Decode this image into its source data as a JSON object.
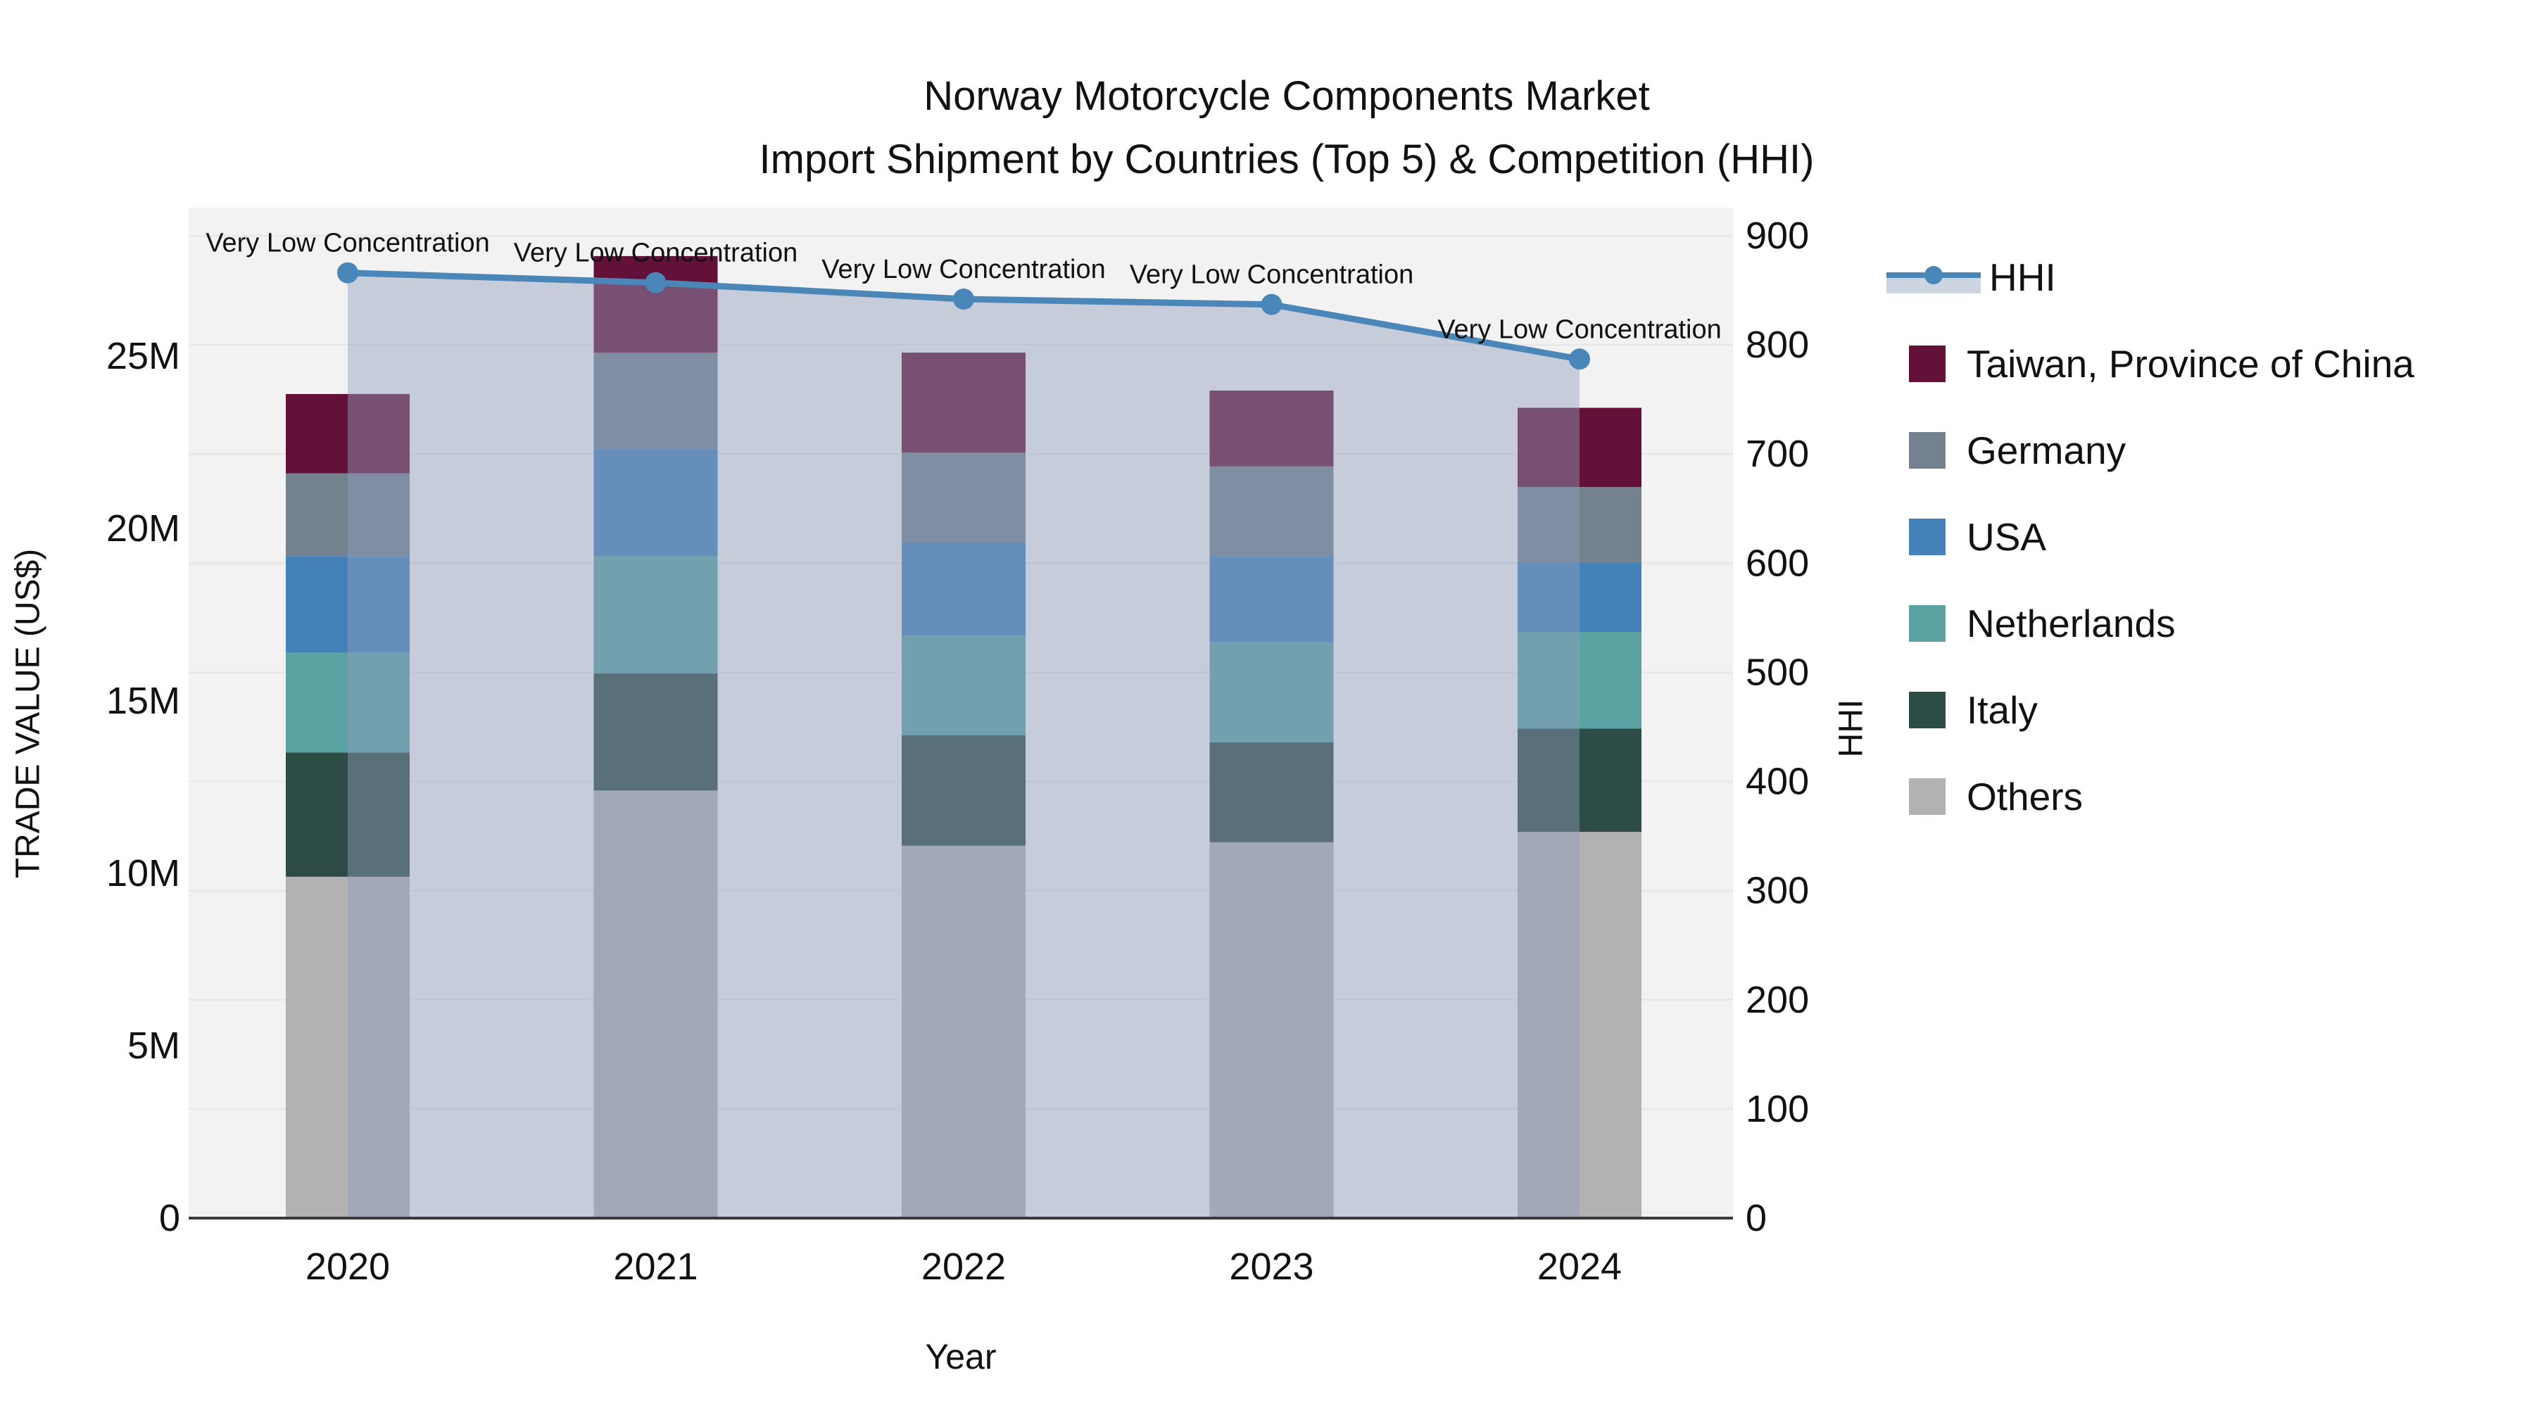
{
  "title": {
    "line1": "Norway Motorcycle Components Market",
    "line2": "Import Shipment by Countries (Top 5) & Competition (HHI)"
  },
  "axes": {
    "x": {
      "label": "Year",
      "categories": [
        "2020",
        "2021",
        "2022",
        "2023",
        "2024"
      ]
    },
    "y_left": {
      "label": "TRADE VALUE (US$)",
      "tick_labels": [
        "0",
        "5M",
        "10M",
        "15M",
        "20M",
        "25M"
      ],
      "tick_values": [
        0,
        5,
        10,
        15,
        20,
        25
      ],
      "range": [
        0,
        29.3
      ]
    },
    "y_right": {
      "label": "HHI",
      "tick_labels": [
        "0",
        "100",
        "200",
        "300",
        "400",
        "500",
        "600",
        "700",
        "800",
        "900"
      ],
      "tick_values": [
        0,
        100,
        200,
        300,
        400,
        500,
        600,
        700,
        800,
        900
      ],
      "range": [
        0,
        900
      ]
    }
  },
  "chart_data": {
    "type": "stacked-bar+line",
    "categories": [
      "2020",
      "2021",
      "2022",
      "2023",
      "2024"
    ],
    "value_unit": "M US$",
    "series": [
      {
        "name": "Taiwan, Province of China",
        "color": "#64113a",
        "values": [
          2.3,
          2.8,
          2.9,
          2.2,
          2.3
        ]
      },
      {
        "name": "Germany",
        "color": "#74818f",
        "values": [
          2.4,
          2.8,
          2.6,
          2.6,
          2.2
        ]
      },
      {
        "name": "USA",
        "color": "#4381b8",
        "values": [
          2.8,
          3.1,
          2.7,
          2.5,
          2.0
        ]
      },
      {
        "name": "Netherlands",
        "color": "#5ba3a3",
        "values": [
          2.9,
          3.4,
          2.9,
          2.9,
          2.8
        ]
      },
      {
        "name": "Italy",
        "color": "#2d4c46",
        "values": [
          3.6,
          3.4,
          3.2,
          2.9,
          3.0
        ]
      },
      {
        "name": "Others",
        "color": "#b3b1b1",
        "values": [
          9.9,
          12.4,
          10.8,
          10.9,
          11.2
        ]
      }
    ],
    "stack_order_bottom_to_top": [
      "Others",
      "Italy",
      "Netherlands",
      "USA",
      "Germany",
      "Taiwan, Province of China"
    ],
    "line": {
      "name": "HHI",
      "axis": "right",
      "color": "#4a86b8",
      "area_fill": "rgba(145,158,188,0.45)",
      "values": [
        866,
        857,
        842,
        837,
        787
      ]
    },
    "annotations": {
      "text": "Very Low Concentration"
    },
    "layout_hints": {
      "plot_background": "#f2f2f2",
      "gridline_color": "#e7e7e7",
      "grid": "horizontal, every 100 HHI",
      "legend_position": "right"
    }
  }
}
